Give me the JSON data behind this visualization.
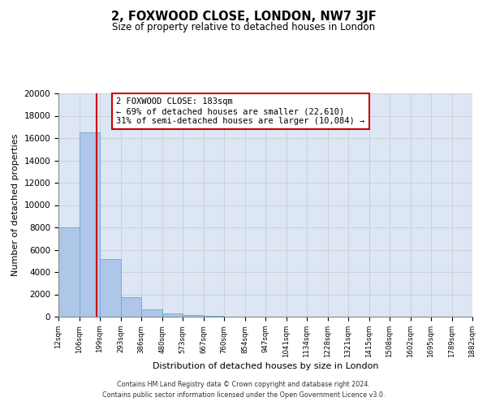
{
  "title": "2, FOXWOOD CLOSE, LONDON, NW7 3JF",
  "subtitle": "Size of property relative to detached houses in London",
  "xlabel": "Distribution of detached houses by size in London",
  "ylabel": "Number of detached properties",
  "bar_edges": [
    12,
    106,
    199,
    293,
    386,
    480,
    573,
    667,
    760,
    854,
    947,
    1041,
    1134,
    1228,
    1321,
    1415,
    1508,
    1602,
    1695,
    1789,
    1882
  ],
  "bar_heights": [
    8000,
    16500,
    5200,
    1750,
    650,
    300,
    150,
    100,
    0,
    0,
    0,
    0,
    0,
    0,
    0,
    0,
    0,
    0,
    0,
    0
  ],
  "bar_color": "#aec6e8",
  "bar_edgecolor": "#6aaad4",
  "property_line_x": 183,
  "property_line_color": "#cc0000",
  "annotation_title": "2 FOXWOOD CLOSE: 183sqm",
  "annotation_line1": "← 69% of detached houses are smaller (22,610)",
  "annotation_line2": "31% of semi-detached houses are larger (10,084) →",
  "annotation_box_color": "#ffffff",
  "annotation_box_edgecolor": "#cc0000",
  "ylim": [
    0,
    20000
  ],
  "yticks": [
    0,
    2000,
    4000,
    6000,
    8000,
    10000,
    12000,
    14000,
    16000,
    18000,
    20000
  ],
  "xtick_labels": [
    "12sqm",
    "106sqm",
    "199sqm",
    "293sqm",
    "386sqm",
    "480sqm",
    "573sqm",
    "667sqm",
    "760sqm",
    "854sqm",
    "947sqm",
    "1041sqm",
    "1134sqm",
    "1228sqm",
    "1321sqm",
    "1415sqm",
    "1508sqm",
    "1602sqm",
    "1695sqm",
    "1789sqm",
    "1882sqm"
  ],
  "footer1": "Contains HM Land Registry data © Crown copyright and database right 2024.",
  "footer2": "Contains public sector information licensed under the Open Government Licence v3.0.",
  "bg_color": "#ffffff",
  "grid_color": "#cccccc",
  "axes_bg_color": "#dce6f5"
}
